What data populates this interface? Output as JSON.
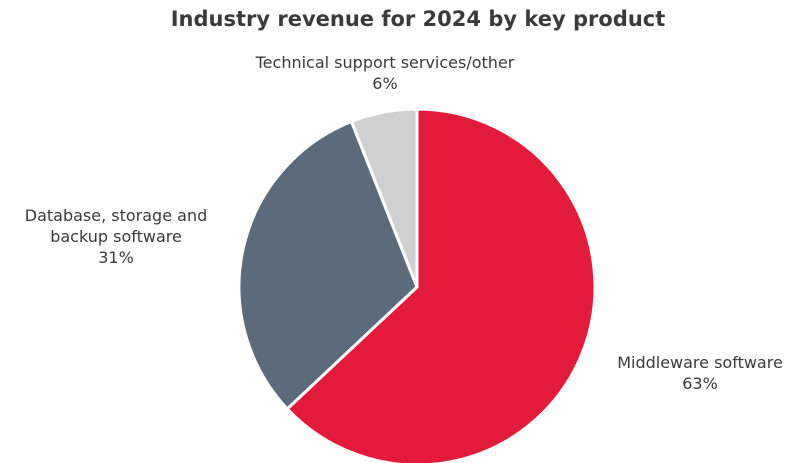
{
  "chart_data": {
    "type": "pie",
    "title": "Industry revenue for 2024 by key product",
    "start_angle_deg": 0,
    "direction": "clockwise",
    "slices": [
      {
        "label_lines": [
          "Middleware software"
        ],
        "value": 63,
        "value_label": "63%",
        "color": "#e31b3b"
      },
      {
        "label_lines": [
          "Database, storage and",
          "backup software"
        ],
        "value": 31,
        "value_label": "31%",
        "color": "#5b6b7b"
      },
      {
        "label_lines": [
          "Technical support services/other"
        ],
        "value": 6,
        "value_label": "6%",
        "color": "#d0d0d0"
      }
    ],
    "legend": "none"
  }
}
